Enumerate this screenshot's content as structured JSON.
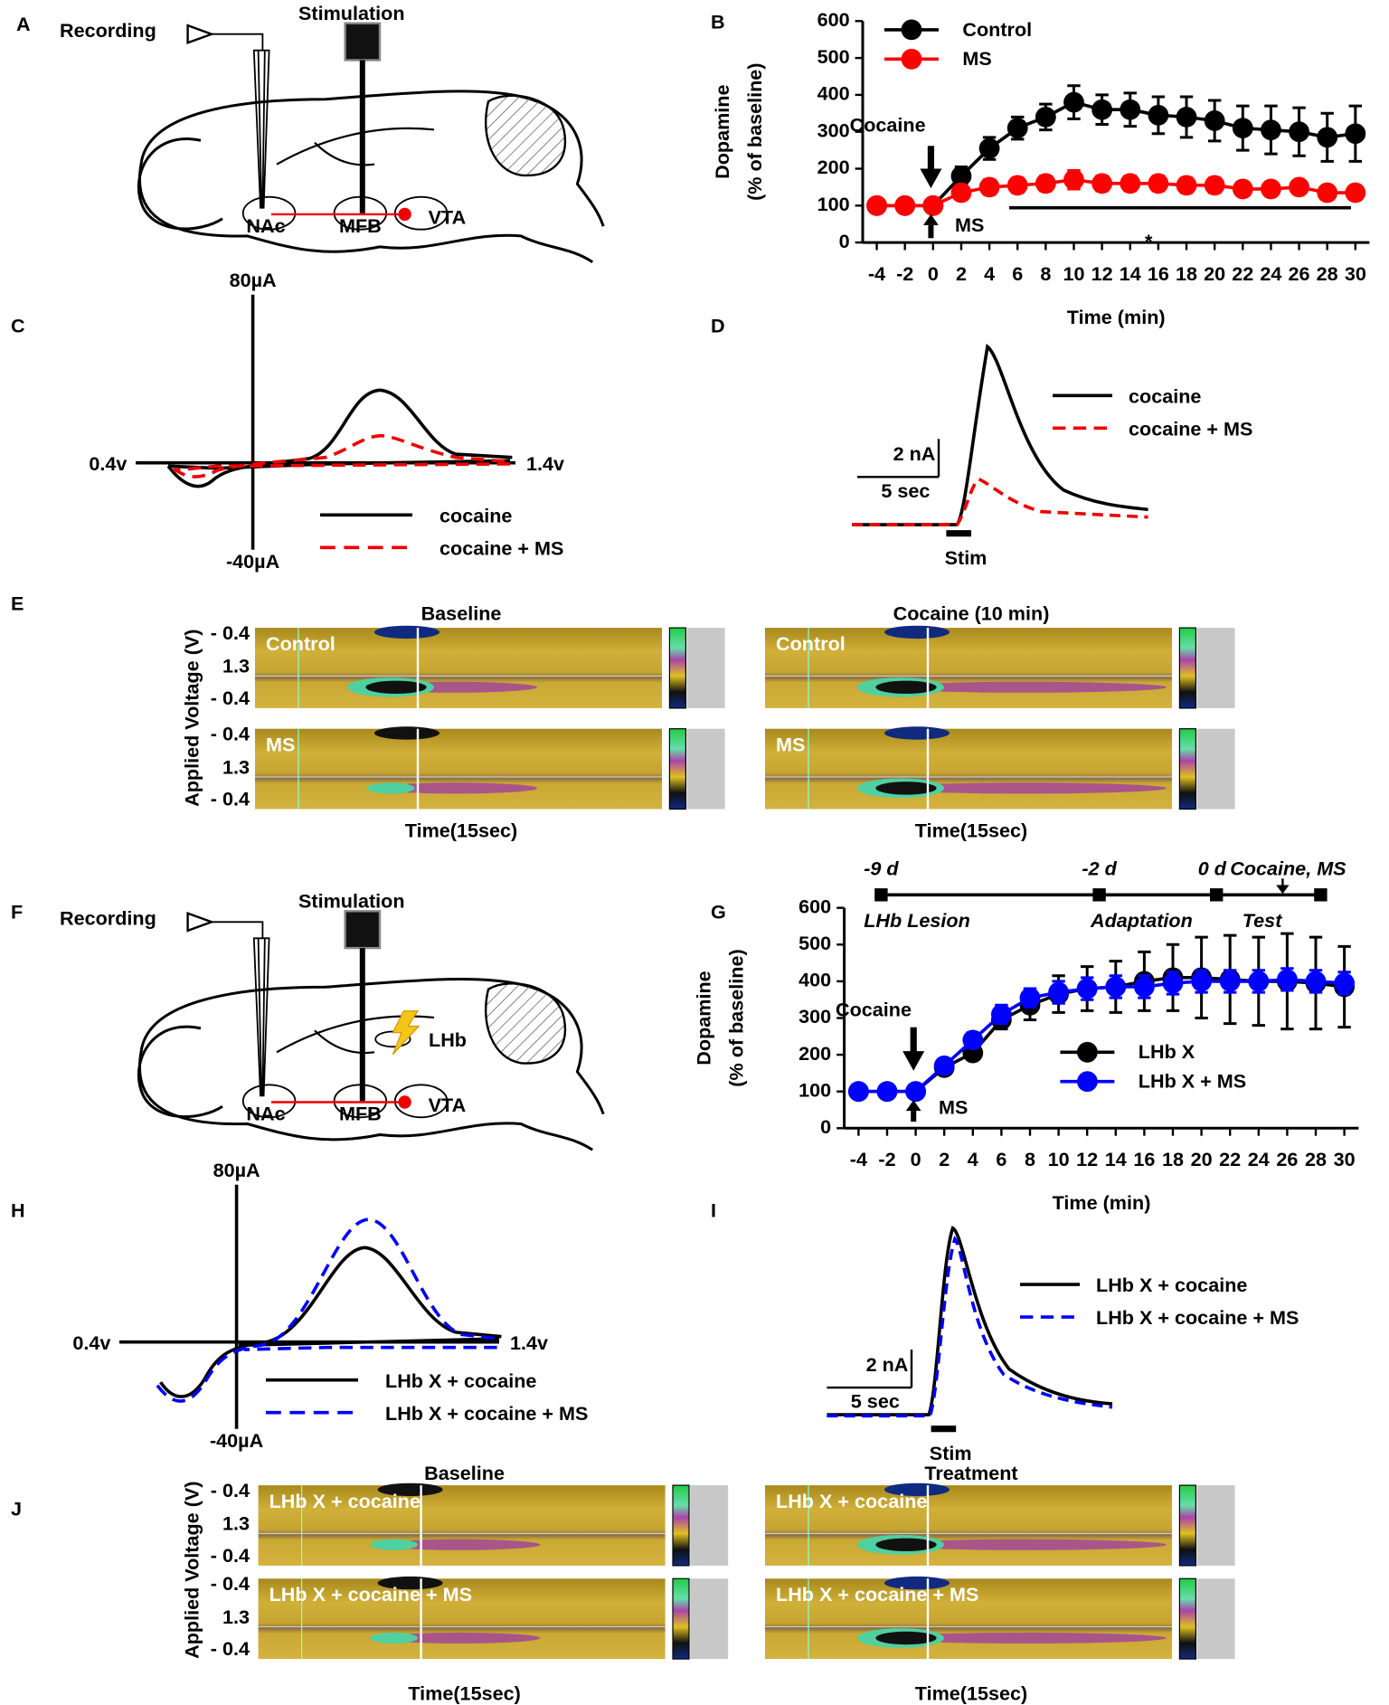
{
  "figure": {
    "panel_labels": [
      "A",
      "B",
      "C",
      "D",
      "E",
      "F",
      "G",
      "H",
      "I",
      "J"
    ],
    "A": {
      "recording": "Recording",
      "stimulation": "Stimulation",
      "regions": [
        "NAc",
        "MFB",
        "VTA"
      ]
    },
    "C": {
      "top": "80µA",
      "bottom": "-40µA",
      "left": "0.4v",
      "right": "1.4v",
      "legend": [
        "cocaine",
        "cocaine + MS"
      ]
    },
    "D": {
      "scale_y": "2 nA",
      "scale_x": "5 sec",
      "stim": "Stim",
      "legend": [
        "cocaine",
        "cocaine + MS"
      ]
    },
    "E": {
      "ylabel": "Applied Voltage (V)",
      "voltages": [
        "- 0.4",
        "1.3",
        "- 0.4"
      ],
      "columns": [
        "Baseline",
        "Cocaine (10 min)"
      ],
      "rows": [
        "Control",
        "MS"
      ],
      "xlabel": "Time(15sec)"
    },
    "F": {
      "recording": "Recording",
      "stimulation": "Stimulation",
      "regions": [
        "NAc",
        "MFB",
        "VTA",
        "LHb"
      ]
    },
    "H": {
      "top": "80µA",
      "bottom": "-40µA",
      "left": "0.4v",
      "right": "1.4v",
      "legend": [
        "LHb X + cocaine",
        "LHb X + cocaine + MS"
      ]
    },
    "I": {
      "scale_y": "2 nA",
      "scale_x": "5 sec",
      "stim": "Stim",
      "legend": [
        "LHb X + cocaine",
        "LHb X + cocaine + MS"
      ]
    },
    "J": {
      "ylabel": "Applied Voltage (V)",
      "voltages": [
        "- 0.4",
        "1.3",
        "- 0.4"
      ],
      "columns": [
        "Baseline",
        "Treatment"
      ],
      "rows": [
        "LHb X + cocaine",
        "LHb X + cocaine + MS"
      ],
      "xlabel": "Time(15sec)"
    }
  },
  "chart_data": [
    {
      "type": "line",
      "xlabel": "Time (min)",
      "ylabel": [
        "Dopamine",
        "(% of baseline)"
      ],
      "x": [
        -4,
        -2,
        0,
        2,
        4,
        6,
        8,
        10,
        12,
        14,
        16,
        18,
        20,
        22,
        24,
        26,
        28,
        30
      ],
      "xlim": [
        -5,
        31
      ],
      "xticks": [
        -4,
        -2,
        0,
        2,
        4,
        6,
        8,
        10,
        12,
        14,
        16,
        18,
        20,
        22,
        24,
        26,
        28,
        30
      ],
      "ylim": [
        0,
        600
      ],
      "yticks": [
        0,
        100,
        200,
        300,
        400,
        500,
        600
      ],
      "legend": "upper left",
      "annotations": [
        "Cocaine",
        "MS",
        "*"
      ],
      "series": [
        {
          "name": "Control",
          "color": "#000000",
          "values": [
            100,
            100,
            100,
            180,
            255,
            310,
            340,
            380,
            360,
            360,
            345,
            340,
            330,
            310,
            305,
            300,
            285,
            295
          ],
          "errors": [
            0,
            0,
            0,
            25,
            30,
            30,
            35,
            45,
            40,
            45,
            50,
            55,
            55,
            60,
            65,
            65,
            65,
            75
          ]
        },
        {
          "name": "MS",
          "color": "#ff0000",
          "values": [
            100,
            100,
            100,
            135,
            150,
            155,
            160,
            170,
            160,
            160,
            160,
            155,
            155,
            145,
            145,
            150,
            135,
            135
          ],
          "errors": [
            0,
            0,
            0,
            15,
            20,
            20,
            20,
            25,
            20,
            20,
            20,
            20,
            20,
            15,
            15,
            15,
            10,
            10
          ]
        }
      ]
    },
    {
      "type": "line",
      "xlabel": "Time (min)",
      "ylabel": [
        "Dopamine",
        "(% of baseline)"
      ],
      "x": [
        -4,
        -2,
        0,
        2,
        4,
        6,
        8,
        10,
        12,
        14,
        16,
        18,
        20,
        22,
        24,
        26,
        28,
        30
      ],
      "xlim": [
        -5,
        31
      ],
      "xticks": [
        -4,
        -2,
        0,
        2,
        4,
        6,
        8,
        10,
        12,
        14,
        16,
        18,
        20,
        22,
        24,
        26,
        28,
        30
      ],
      "ylim": [
        0,
        600
      ],
      "yticks": [
        0,
        100,
        200,
        300,
        400,
        500,
        600
      ],
      "legend": "lower right",
      "annotations": [
        "Cocaine",
        "MS"
      ],
      "timeline": {
        "labels": [
          "-9 d",
          "-2 d",
          "0 d",
          "Cocaine, MS"
        ],
        "phases": [
          "LHb Lesion",
          "Adaptation",
          "Test"
        ]
      },
      "series": [
        {
          "name": "LHb X",
          "color": "#000000",
          "values": [
            100,
            100,
            100,
            165,
            205,
            295,
            335,
            365,
            380,
            385,
            400,
            410,
            410,
            405,
            400,
            400,
            395,
            385
          ],
          "errors": [
            0,
            0,
            0,
            15,
            15,
            25,
            40,
            50,
            60,
            70,
            80,
            90,
            110,
            120,
            120,
            130,
            125,
            110
          ]
        },
        {
          "name": "LHb X + MS",
          "color": "#0000ff",
          "values": [
            100,
            100,
            100,
            170,
            240,
            310,
            355,
            370,
            380,
            385,
            385,
            395,
            400,
            400,
            400,
            405,
            400,
            395
          ],
          "errors": [
            0,
            0,
            0,
            15,
            20,
            25,
            25,
            30,
            30,
            30,
            30,
            30,
            30,
            30,
            30,
            30,
            30,
            30
          ]
        }
      ]
    }
  ]
}
